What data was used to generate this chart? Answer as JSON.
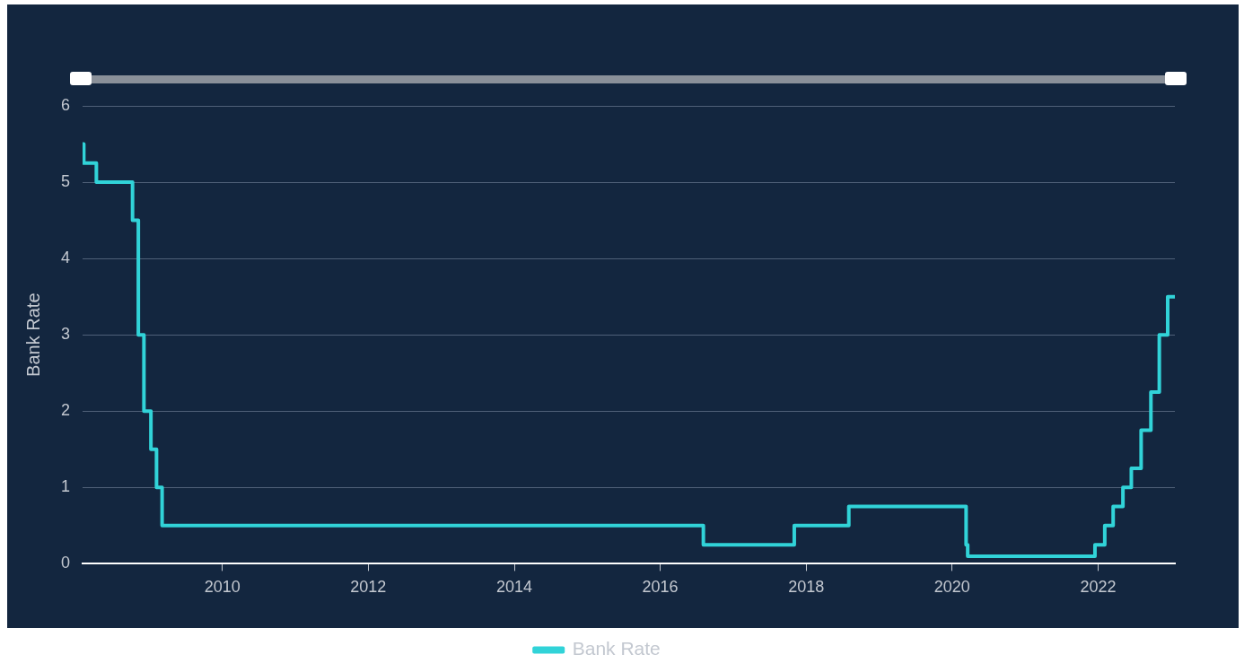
{
  "chart_data": {
    "type": "step",
    "ylabel": "Bank Rate",
    "x": [
      "2008-02-01",
      "2008-02-07",
      "2008-04-10",
      "2008-10-08",
      "2008-11-06",
      "2008-12-04",
      "2009-01-08",
      "2009-02-05",
      "2009-03-05",
      "2016-08-04",
      "2017-11-02",
      "2018-08-02",
      "2020-03-11",
      "2020-03-19",
      "2021-12-16",
      "2022-02-03",
      "2022-03-17",
      "2022-05-05",
      "2022-06-16",
      "2022-08-04",
      "2022-09-22",
      "2022-11-03",
      "2022-12-15",
      "2023-01-20"
    ],
    "series": [
      {
        "name": "Bank Rate",
        "color": "#31d3d8",
        "values": [
          5.5,
          5.25,
          5.0,
          4.5,
          3.0,
          2.0,
          1.5,
          1.0,
          0.5,
          0.25,
          0.5,
          0.75,
          0.25,
          0.1,
          0.25,
          0.5,
          0.75,
          1.0,
          1.25,
          1.75,
          2.25,
          3.0,
          3.5,
          3.5
        ]
      }
    ],
    "xlim": [
      "2008-02-01",
      "2023-01-20"
    ],
    "xticks": [
      {
        "value": "2010",
        "label": "2010"
      },
      {
        "value": "2012",
        "label": "2012"
      },
      {
        "value": "2014",
        "label": "2014"
      },
      {
        "value": "2016",
        "label": "2016"
      },
      {
        "value": "2018",
        "label": "2018"
      },
      {
        "value": "2020",
        "label": "2020"
      },
      {
        "value": "2022",
        "label": "2022"
      }
    ],
    "ylim": [
      0,
      6
    ],
    "yticks": [
      0,
      1,
      2,
      3,
      4,
      5,
      6
    ],
    "grid": "y",
    "legend": "bottom",
    "marker": "none",
    "line_style": "solid"
  }
}
